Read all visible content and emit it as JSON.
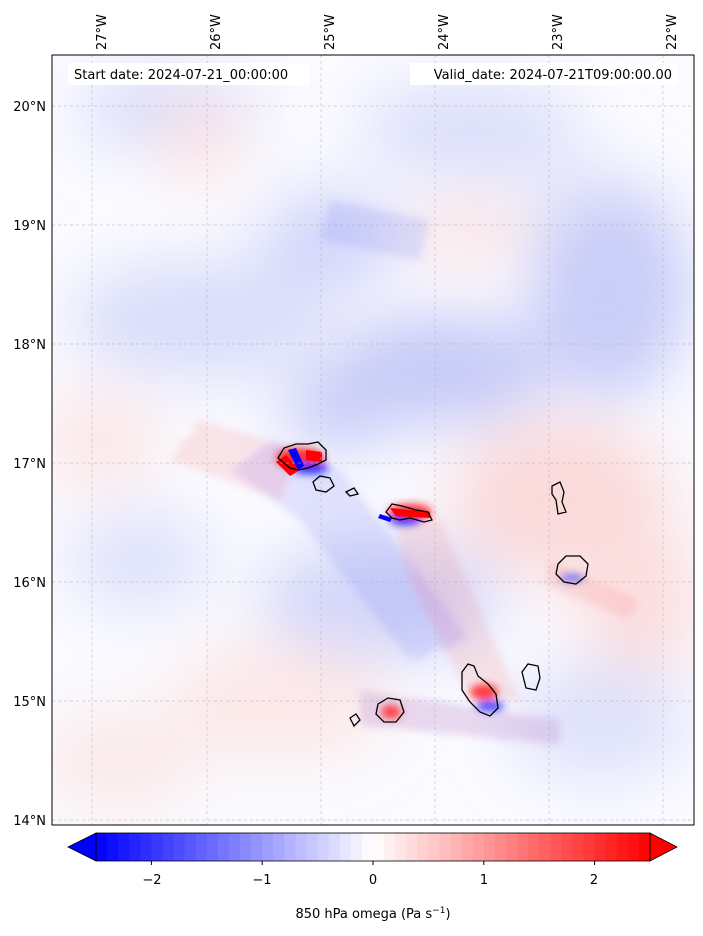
{
  "map": {
    "start_date": "Start date: 2024-07-21_00:00:00",
    "valid_date": "Valid_date: 2024-07-21T09:00:00.00",
    "lon_ticks": [
      "27°W",
      "26°W",
      "25°W",
      "24°W",
      "23°W",
      "22°W"
    ],
    "lat_ticks": [
      "20°N",
      "19°N",
      "18°N",
      "17°N",
      "16°N",
      "15°N",
      "14°N"
    ],
    "gridlines": true,
    "field": "850 hPa omega",
    "region": "Cape Verde islands"
  },
  "colorbar": {
    "label": "850 hPa omega (Pa s",
    "label_exp": "−1",
    "label_end": ")",
    "ticks": [
      "−2",
      "−1",
      "0",
      "1",
      "2"
    ],
    "range": [
      -2.5,
      2.5
    ],
    "extend": "both",
    "colormap": "bwr",
    "colors": {
      "negative": "#0000ff",
      "zero": "#ffffff",
      "positive": "#ff0000"
    }
  }
}
